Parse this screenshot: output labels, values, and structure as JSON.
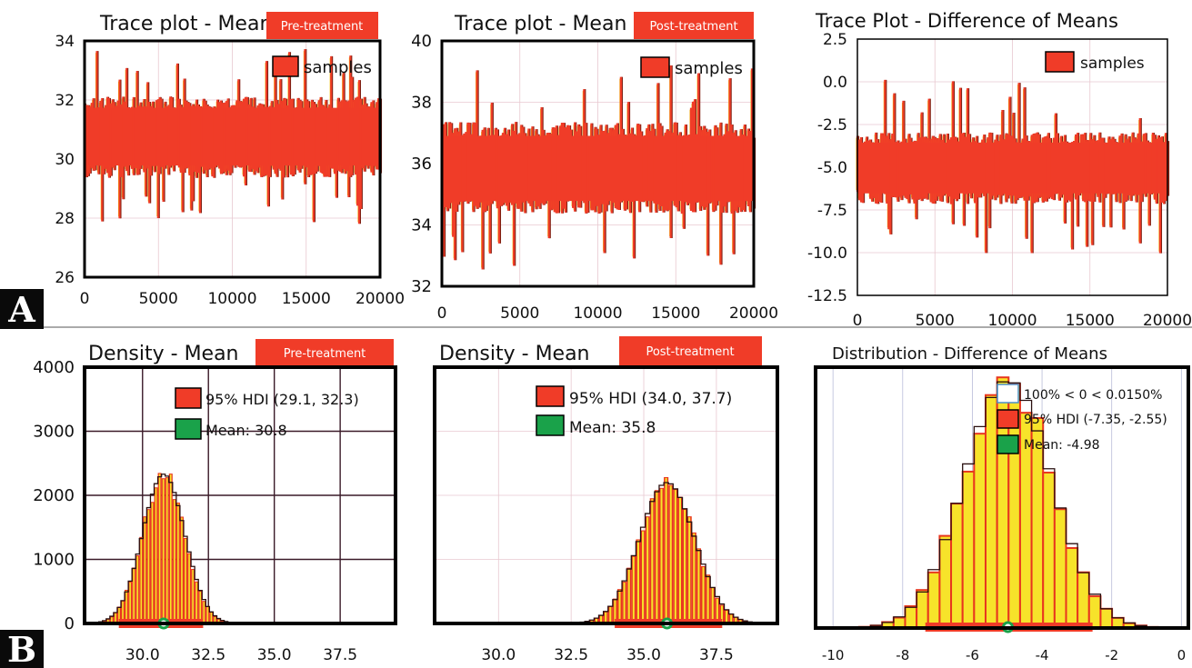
{
  "panel_labels": [
    "A",
    "B"
  ],
  "colors": {
    "trace_fill": "#f03c28",
    "trace_edge": "#7a1d10",
    "trace_yellow": "#f2c200",
    "bar_yellow": "#f7e32a",
    "bar_red": "#e8361e",
    "hdi_red": "#f03c28",
    "mean_green": "#1aa24a",
    "grid_light": "#e8c8d0",
    "grid_dark": "#3a1a28",
    "tag_red": "#f03c28"
  },
  "chart_data": [
    {
      "id": "trace_pre",
      "type": "line",
      "title": "Trace plot - Mean",
      "tag": "Pre-treatment",
      "xlim": [
        0,
        20000
      ],
      "ylim": [
        26,
        34
      ],
      "x_ticks": [
        "0",
        "5000",
        "10000",
        "15000",
        "20000"
      ],
      "x_tick_values": [
        0,
        5000,
        10000,
        15000,
        20000
      ],
      "y_ticks": [
        "26",
        "28",
        "30",
        "32",
        "34"
      ],
      "y_tick_values": [
        26,
        28,
        30,
        32,
        34
      ],
      "legend": "samples",
      "series": [
        {
          "center": 30.8,
          "band_low": 29.6,
          "band_high": 31.9,
          "min": 27.8,
          "max": 33.8
        }
      ]
    },
    {
      "id": "trace_post",
      "type": "line",
      "title": "Trace plot - Mean",
      "tag": "Post-treatment",
      "xlim": [
        0,
        20000
      ],
      "ylim": [
        32,
        40
      ],
      "x_ticks": [
        "0",
        "5000",
        "10000",
        "15000",
        "20000"
      ],
      "x_tick_values": [
        0,
        5000,
        10000,
        15000,
        20000
      ],
      "y_ticks": [
        "32",
        "34",
        "36",
        "38",
        "40"
      ],
      "y_tick_values": [
        32,
        34,
        36,
        38,
        40
      ],
      "legend": "samples",
      "series": [
        {
          "center": 35.8,
          "band_low": 34.6,
          "band_high": 37.1,
          "min": 32.4,
          "max": 39.2
        }
      ]
    },
    {
      "id": "trace_diff",
      "type": "line",
      "title": "Trace Plot - Difference of Means",
      "xlim": [
        0,
        20000
      ],
      "ylim": [
        -12.5,
        2.5
      ],
      "x_ticks": [
        "0",
        "5000",
        "10000",
        "15000",
        "20000"
      ],
      "x_tick_values": [
        0,
        5000,
        10000,
        15000,
        20000
      ],
      "y_ticks": [
        "2.5",
        "0.0",
        "-2.5",
        "-5.0",
        "-7.5",
        "-10.0",
        "-12.5"
      ],
      "y_tick_values": [
        2.5,
        0,
        -2.5,
        -5,
        -7.5,
        -10,
        -12.5
      ],
      "legend": "samples",
      "series": [
        {
          "center": -5.0,
          "band_low": -6.8,
          "band_high": -3.3,
          "min": -10.1,
          "max": 0.2
        }
      ]
    },
    {
      "id": "density_pre",
      "type": "bar",
      "title": "Density - Mean",
      "tag": "Pre-treatment",
      "xlim": [
        27.8,
        39.6
      ],
      "ylim": [
        0,
        4000
      ],
      "x_ticks": [
        "30.0",
        "32.5",
        "35.0",
        "37.5"
      ],
      "x_tick_values": [
        30,
        32.5,
        35,
        37.5
      ],
      "y_ticks": [
        "0",
        "1000",
        "2000",
        "3000",
        "4000"
      ],
      "y_tick_values": [
        0,
        1000,
        2000,
        3000,
        4000
      ],
      "legend": [
        "95% HDI (29.1, 32.3)",
        "Mean: 30.8"
      ],
      "hdi": [
        29.1,
        32.3
      ],
      "mean": 30.8,
      "hist_center": 30.8,
      "hist_sd": 0.8,
      "hist_peak": 2330,
      "bin_width": 0.14
    },
    {
      "id": "density_post",
      "type": "bar",
      "title": "Density - Mean",
      "tag": "Post-treatment",
      "xlim": [
        27.8,
        39.6
      ],
      "ylim": [
        0,
        4000
      ],
      "x_ticks": [
        "30.0",
        "32.5",
        "35.0",
        "37.5"
      ],
      "x_tick_values": [
        30,
        32.5,
        35,
        37.5
      ],
      "y_ticks": [],
      "y_tick_values": [
        0,
        1000,
        2000,
        3000,
        4000
      ],
      "legend": [
        "95% HDI (34.0, 37.7)",
        "Mean: 35.8"
      ],
      "hdi": [
        34.0,
        37.7
      ],
      "mean": 35.8,
      "hist_center": 35.8,
      "hist_sd": 0.95,
      "hist_peak": 2200,
      "bin_width": 0.16
    },
    {
      "id": "dist_diff",
      "type": "bar",
      "title": "Distribution - Difference of Means",
      "xlim": [
        -10.5,
        0.2
      ],
      "ylim": [
        0,
        4000
      ],
      "x_ticks": [
        "-10",
        "-8",
        "-6",
        "-4",
        "-2",
        "0"
      ],
      "x_tick_values": [
        -10,
        -8,
        -6,
        -4,
        -2,
        0
      ],
      "y_ticks": [],
      "legend": [
        "100% < 0 < 0.0150%",
        "95% HDI (-7.35, -2.55)",
        "Mean: -4.98"
      ],
      "hdi": [
        -7.35,
        -2.55
      ],
      "mean": -4.98,
      "hist_center": -4.98,
      "hist_sd": 1.25,
      "hist_peak": 3800,
      "bin_width": 0.33
    }
  ]
}
